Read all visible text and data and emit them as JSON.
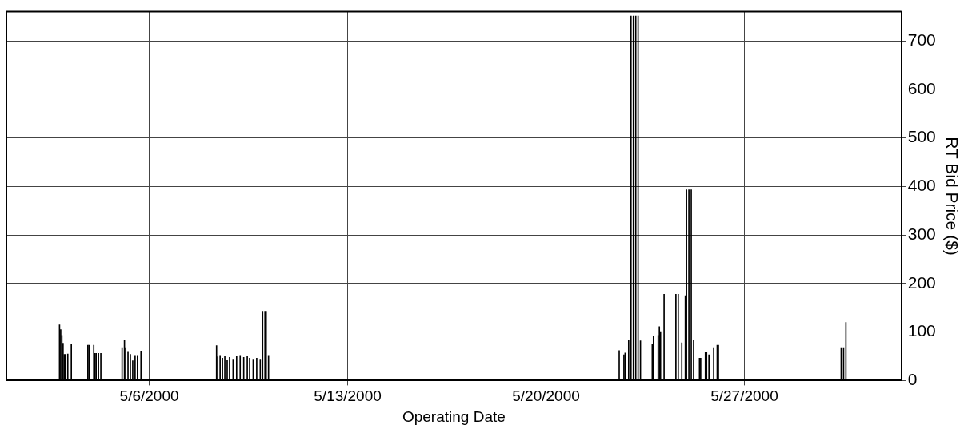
{
  "chart_data": {
    "type": "bar",
    "xlabel": "Operating Date",
    "ylabel": "RT Bid Price ($)",
    "color": "#000000",
    "grid": true,
    "legend": false,
    "xlim": [
      "2000-04-30T23:00",
      "2000-06-01T13:00"
    ],
    "xticks": [
      {
        "value": "2000-05-06",
        "label": "5/6/2000"
      },
      {
        "value": "2000-05-13",
        "label": "5/13/2000"
      },
      {
        "value": "2000-05-20",
        "label": "5/20/2000"
      },
      {
        "value": "2000-05-27",
        "label": "5/27/2000"
      }
    ],
    "ylim": [
      0,
      760
    ],
    "yticks": [
      0,
      100,
      200,
      300,
      400,
      500,
      600,
      700
    ],
    "x": [
      "2000-05-02T20:00",
      "2000-05-02T21:00",
      "2000-05-02T22:00",
      "2000-05-02T23:00",
      "2000-05-03T00:00",
      "2000-05-03T01:00",
      "2000-05-03T03:00",
      "2000-05-03T06:00",
      "2000-05-03T20:00",
      "2000-05-03T21:00",
      "2000-05-04T01:00",
      "2000-05-04T02:00",
      "2000-05-04T03:00",
      "2000-05-04T05:00",
      "2000-05-04T07:00",
      "2000-05-05T01:00",
      "2000-05-05T03:00",
      "2000-05-05T04:00",
      "2000-05-05T06:00",
      "2000-05-05T08:00",
      "2000-05-05T10:00",
      "2000-05-05T12:00",
      "2000-05-05T14:00",
      "2000-05-05T17:00",
      "2000-05-08T09:00",
      "2000-05-08T10:00",
      "2000-05-08T12:00",
      "2000-05-08T14:00",
      "2000-05-08T16:00",
      "2000-05-08T18:00",
      "2000-05-08T20:00",
      "2000-05-08T23:00",
      "2000-05-09T02:00",
      "2000-05-09T05:00",
      "2000-05-09T08:00",
      "2000-05-09T11:00",
      "2000-05-09T13:00",
      "2000-05-09T16:00",
      "2000-05-09T19:00",
      "2000-05-09T22:00",
      "2000-05-10T00:00",
      "2000-05-10T02:00",
      "2000-05-10T03:00",
      "2000-05-10T05:00",
      "2000-05-22T14:00",
      "2000-05-22T18:00",
      "2000-05-22T19:00",
      "2000-05-22T22:00",
      "2000-05-23T00:00",
      "2000-05-23T02:00",
      "2000-05-23T04:00",
      "2000-05-23T06:00",
      "2000-05-23T08:00",
      "2000-05-23T18:00",
      "2000-05-23T19:00",
      "2000-05-23T23:00",
      "2000-05-24T00:00",
      "2000-05-24T01:00",
      "2000-05-24T04:00",
      "2000-05-24T14:00",
      "2000-05-24T16:00",
      "2000-05-24T19:00",
      "2000-05-24T22:00",
      "2000-05-24T23:00",
      "2000-05-25T01:00",
      "2000-05-25T03:00",
      "2000-05-25T05:00",
      "2000-05-25T10:00",
      "2000-05-25T11:00",
      "2000-05-25T15:00",
      "2000-05-25T16:00",
      "2000-05-25T18:00",
      "2000-05-25T22:00",
      "2000-05-26T01:00",
      "2000-05-26T02:00",
      "2000-05-30T10:00",
      "2000-05-30T12:00",
      "2000-05-30T14:00"
    ],
    "values": [
      115,
      105,
      93,
      77,
      54,
      54,
      55,
      76,
      73,
      73,
      73,
      56,
      56,
      56,
      56,
      68,
      83,
      68,
      60,
      54,
      41,
      52,
      52,
      61,
      72,
      49,
      52,
      46,
      50,
      42,
      48,
      44,
      51,
      52,
      48,
      50,
      46,
      44,
      46,
      44,
      143,
      143,
      143,
      52,
      62,
      53,
      57,
      84,
      751,
      751,
      751,
      751,
      82,
      75,
      91,
      93,
      111,
      101,
      178,
      178,
      178,
      78,
      175,
      393,
      393,
      393,
      83,
      46,
      46,
      58,
      58,
      53,
      68,
      73,
      73,
      68,
      68,
      120
    ]
  }
}
